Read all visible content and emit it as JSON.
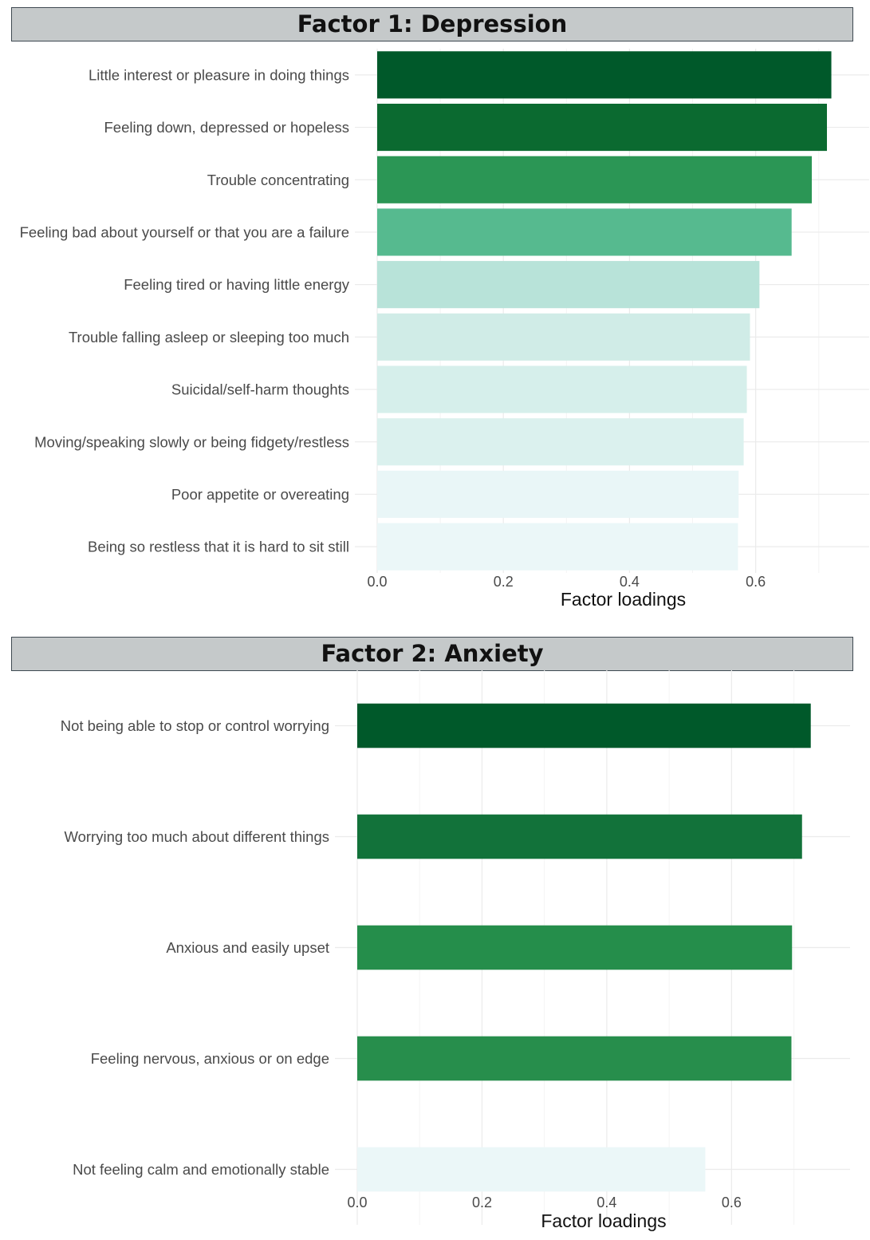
{
  "chart_data": [
    {
      "type": "bar",
      "orientation": "horizontal",
      "title": "Factor 1: Depression",
      "xlabel": "Factor loadings",
      "xlim": [
        0,
        0.78
      ],
      "x_ticks": [
        0.0,
        0.2,
        0.4,
        0.6
      ],
      "x_tick_labels": [
        "0.0",
        "0.2",
        "0.4",
        "0.6"
      ],
      "grid": true,
      "categories": [
        "Little interest or pleasure in doing things",
        "Feeling down, depressed or hopeless",
        "Trouble concentrating",
        "Feeling bad about yourself or that you are a failure",
        "Feeling tired or having little energy",
        "Trouble falling asleep or sleeping too much",
        "Suicidal/self-harm thoughts",
        "Moving/speaking slowly or being fidgety/restless",
        "Poor appetite or overeating",
        "Being so restless that it is hard to sit still"
      ],
      "values": [
        0.72,
        0.713,
        0.689,
        0.657,
        0.606,
        0.591,
        0.586,
        0.581,
        0.573,
        0.572
      ],
      "colors": [
        "#00592a",
        "#0b6a30",
        "#2b9655",
        "#56ba8f",
        "#b8e3d9",
        "#d0ece7",
        "#d6efeb",
        "#dbf1ee",
        "#e9f6f7",
        "#ebf7f8"
      ]
    },
    {
      "type": "bar",
      "orientation": "horizontal",
      "title": "Factor 2: Anxiety",
      "xlabel": "Factor loadings",
      "xlim": [
        0,
        0.79
      ],
      "x_ticks": [
        0.0,
        0.2,
        0.4,
        0.6
      ],
      "x_tick_labels": [
        "0.0",
        "0.2",
        "0.4",
        "0.6"
      ],
      "grid": true,
      "categories": [
        "Not being able to stop or control worrying",
        "Worrying too much about different things",
        "Anxious and easily upset",
        "Feeling nervous, anxious or on edge",
        "Not feeling calm and emotionally stable"
      ],
      "values": [
        0.727,
        0.713,
        0.697,
        0.696,
        0.558
      ],
      "colors": [
        "#00592a",
        "#12723a",
        "#258e4b",
        "#278e4c",
        "#ebf7f8"
      ]
    }
  ]
}
